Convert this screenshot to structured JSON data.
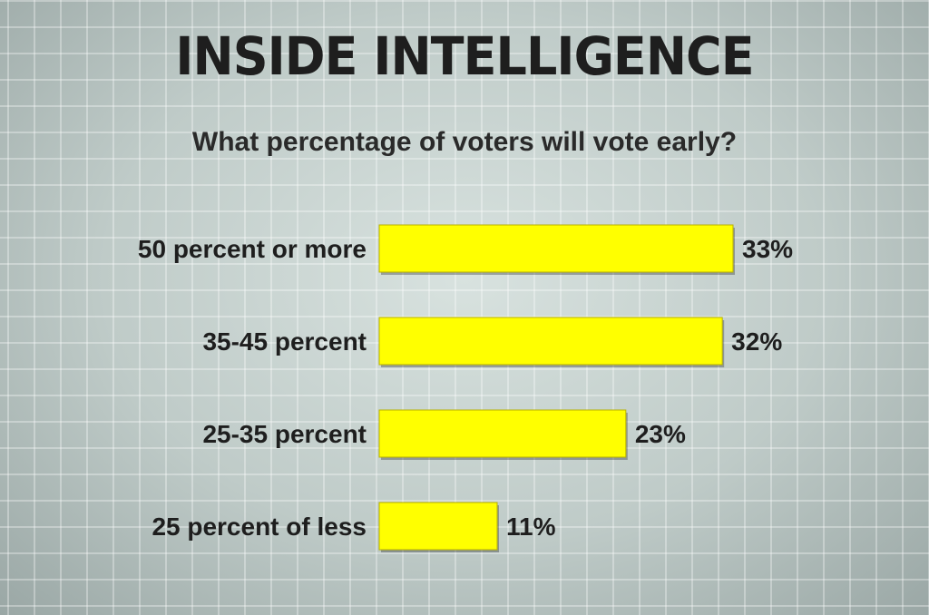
{
  "title": "INSIDE INTELLIGENCE",
  "subtitle": "What percentage of voters will vote early?",
  "colors": {
    "bar": "#ffff00",
    "bar_border": "#b8b200"
  },
  "chart_data": {
    "type": "bar",
    "orientation": "horizontal",
    "title": "INSIDE INTELLIGENCE",
    "subtitle": "What percentage of voters will vote early?",
    "categories": [
      "50 percent or more",
      "35-45 percent",
      "25-35 percent",
      "25 percent of less"
    ],
    "values": [
      33,
      32,
      23,
      11
    ],
    "value_labels": [
      "33%",
      "32%",
      "23%",
      "11%"
    ],
    "xlim": [
      0,
      33
    ],
    "grid": false,
    "legend": "none"
  }
}
